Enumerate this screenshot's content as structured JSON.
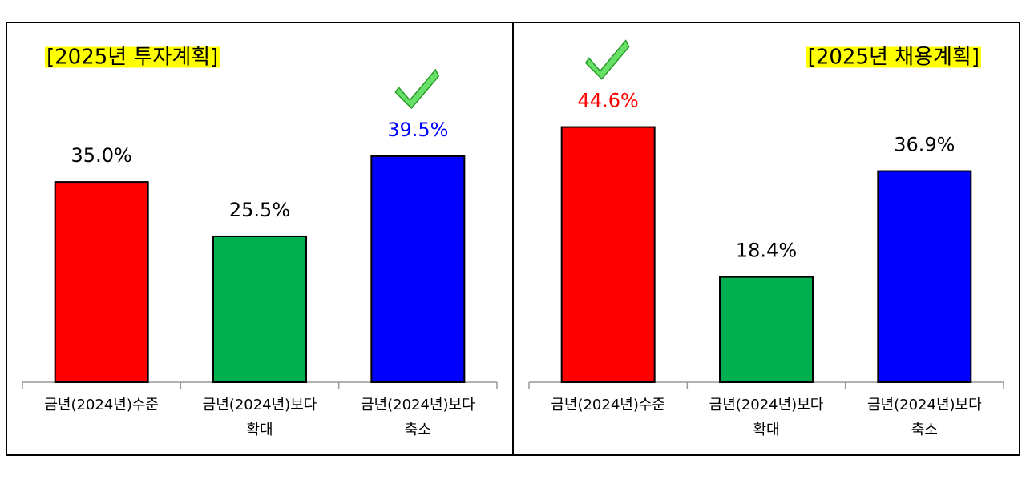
{
  "chart_data": [
    {
      "type": "bar",
      "title": "[2025년 투자계획]",
      "categories": [
        [
          "금년(2024년)수준"
        ],
        [
          "금년(2024년)보다",
          "확대"
        ],
        [
          "금년(2024년)보다",
          "축소"
        ]
      ],
      "values": [
        35.0,
        25.5,
        39.5
      ],
      "value_labels": [
        "35.0%",
        "25.5%",
        "39.5%"
      ],
      "colors": [
        "#ff0000",
        "#00b050",
        "#0000ff"
      ],
      "highlight": 2
    },
    {
      "type": "bar",
      "title": "[2025년 채용계획]",
      "categories": [
        [
          "금년(2024년)수준"
        ],
        [
          "금년(2024년)보다",
          "확대"
        ],
        [
          "금년(2024년)보다",
          "축소"
        ]
      ],
      "values": [
        44.6,
        18.4,
        36.9
      ],
      "value_labels": [
        "44.6%",
        "18.4%",
        "36.9%"
      ],
      "colors": [
        "#ff0000",
        "#00b050",
        "#0000ff"
      ],
      "highlight": 0
    }
  ]
}
